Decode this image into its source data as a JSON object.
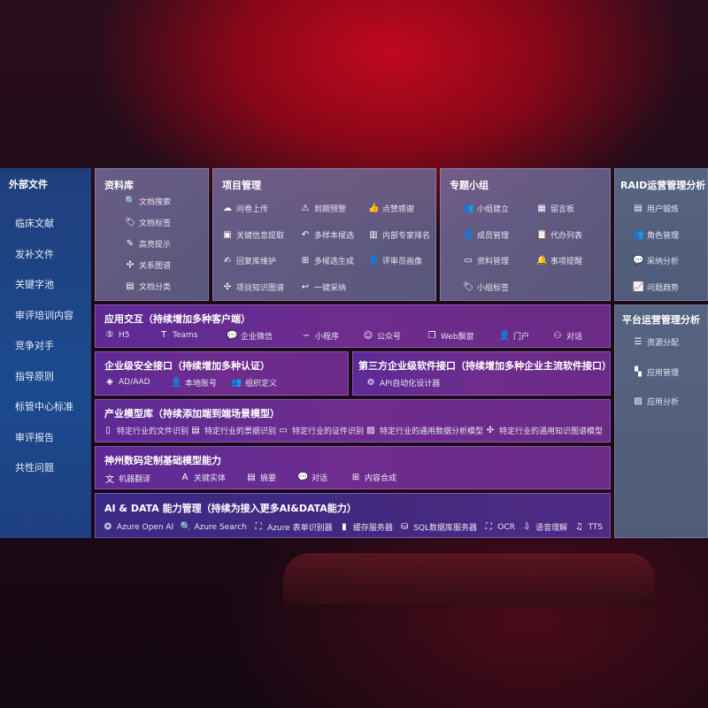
{
  "external": {
    "title": "外部文件",
    "items": [
      "临床文献",
      "发补文件",
      "关键字池",
      "审评培训内容",
      "竞争对手",
      "指导原则",
      "标管中心标准",
      "审评报告",
      "共性问题"
    ]
  },
  "library": {
    "title": "资料库",
    "items": [
      {
        "label": "文档搜索",
        "icon": "doc-search-icon",
        "g": "🔍"
      },
      {
        "label": "文档标签",
        "icon": "tag-icon",
        "g": "🏷"
      },
      {
        "label": "高亮提示",
        "icon": "pen-icon",
        "g": "✎"
      },
      {
        "label": "关系图谱",
        "icon": "graph-icon",
        "g": "✣"
      },
      {
        "label": "文档分类",
        "icon": "doc-category-icon",
        "g": "▤"
      }
    ]
  },
  "project": {
    "title": "项目管理",
    "items": [
      {
        "label": "问卷上传",
        "icon": "cloud-upload-icon",
        "g": "☁"
      },
      {
        "label": "到期预警",
        "icon": "alarm-icon",
        "g": "⚠"
      },
      {
        "label": "点赞感谢",
        "icon": "thumbs-up-icon",
        "g": "👍"
      },
      {
        "label": "关键信息提取",
        "icon": "window-icon",
        "g": "▣"
      },
      {
        "label": "多样本候选",
        "icon": "reply-all-icon",
        "g": "↶"
      },
      {
        "label": "内部专家排名",
        "icon": "ranking-icon",
        "g": "▥"
      },
      {
        "label": "回复库维护",
        "icon": "edit-icon",
        "g": "✍"
      },
      {
        "label": "多候选生成",
        "icon": "puzzle-icon",
        "g": "⊞"
      },
      {
        "label": "评审员画像",
        "icon": "user-icon",
        "g": "👤"
      },
      {
        "label": "项目知识图谱",
        "icon": "knowledge-graph-icon",
        "g": "✣"
      },
      {
        "label": "一键采纳",
        "icon": "reply-icon",
        "g": "↩"
      }
    ]
  },
  "group": {
    "title": "专题小组",
    "items": [
      {
        "label": "小组建立",
        "icon": "group-icon",
        "g": "👥"
      },
      {
        "label": "留言板",
        "icon": "bbs-icon",
        "g": "▦"
      },
      {
        "label": "成员管理",
        "icon": "member-icon",
        "g": "👤"
      },
      {
        "label": "代办列表",
        "icon": "clipboard-icon",
        "g": "📋"
      },
      {
        "label": "资料管理",
        "icon": "folder-icon",
        "g": "▭"
      },
      {
        "label": "事项提醒",
        "icon": "bell-icon",
        "g": "🔔"
      },
      {
        "label": "小组标签",
        "icon": "tag-icon",
        "g": "🏷"
      }
    ]
  },
  "raid": {
    "title": "RAID运营管理分析",
    "items": [
      {
        "label": "用户锻炼",
        "icon": "id-card-icon",
        "g": "▤"
      },
      {
        "label": "角色管理",
        "icon": "users-icon",
        "g": "👥"
      },
      {
        "label": "采纳分析",
        "icon": "qa-icon",
        "g": "💬"
      },
      {
        "label": "问题趋势",
        "icon": "trend-icon",
        "g": "📈"
      }
    ]
  },
  "platform": {
    "title": "平台运营管理分析",
    "items": [
      {
        "label": "资源分配",
        "icon": "checklist-icon",
        "g": "☰"
      },
      {
        "label": "应用管理",
        "icon": "apps-icon",
        "g": "▚"
      },
      {
        "label": "应用分析",
        "icon": "analysis-icon",
        "g": "▨"
      }
    ]
  },
  "interaction": {
    "title": "应用交互（持续增加多种客户端）",
    "items": [
      {
        "label": "H5",
        "icon": "html5-icon",
        "g": "⑤"
      },
      {
        "label": "Teams",
        "icon": "teams-icon",
        "g": "T"
      },
      {
        "label": "企业微信",
        "icon": "wecom-icon",
        "g": "💬"
      },
      {
        "label": "小程序",
        "icon": "miniprogram-icon",
        "g": "∽"
      },
      {
        "label": "公众号",
        "icon": "official-account-icon",
        "g": "☺"
      },
      {
        "label": "Web飘窗",
        "icon": "web-window-icon",
        "g": "❐"
      },
      {
        "label": "门户",
        "icon": "portal-icon",
        "g": "👤"
      },
      {
        "label": "对话",
        "icon": "chat-users-icon",
        "g": "⚇"
      }
    ]
  },
  "security": {
    "title": "企业级安全接口（持续增加多种认证）",
    "items": [
      {
        "label": "AD/AAD",
        "icon": "ad-icon",
        "g": "◈"
      },
      {
        "label": "本地账号",
        "icon": "local-account-icon",
        "g": "👤"
      },
      {
        "label": "组织定义",
        "icon": "org-icon",
        "g": "👥"
      }
    ]
  },
  "thirdparty": {
    "title": "第三方企业级软件接口（持续增加多种企业主流软件接口）",
    "items": [
      {
        "label": "API自动化设计器",
        "icon": "gear-icon",
        "g": "⚙"
      }
    ]
  },
  "models": {
    "title": "产业模型库（持续添加端到端场景模型）",
    "items": [
      {
        "label": "特定行业的文件识别",
        "icon": "file-icon",
        "g": "▯"
      },
      {
        "label": "特定行业的票据识别",
        "icon": "receipt-icon",
        "g": "▤"
      },
      {
        "label": "特定行业的证件识别",
        "icon": "id-card-icon",
        "g": "▭"
      },
      {
        "label": "特定行业的通用数据分析模型",
        "icon": "chart-icon",
        "g": "▨"
      },
      {
        "label": "特定行业的通用知识图谱模型",
        "icon": "knowledge-graph-icon",
        "g": "✣"
      }
    ]
  },
  "base": {
    "title": "神州数码定制基础模型能力",
    "items": [
      {
        "label": "机器翻译",
        "icon": "translate-icon",
        "g": "文"
      },
      {
        "label": "关键实体",
        "icon": "entity-icon",
        "g": "A"
      },
      {
        "label": "摘要",
        "icon": "summary-icon",
        "g": "▤"
      },
      {
        "label": "对话",
        "icon": "chat-icon",
        "g": "💬"
      },
      {
        "label": "内容合成",
        "icon": "compose-icon",
        "g": "⊞"
      }
    ]
  },
  "aidata": {
    "title": "AI & DATA 能力管理（持续为接入更多AI&DATA能力）",
    "items": [
      {
        "label": "Azure Open AI",
        "icon": "openai-icon",
        "g": "❂"
      },
      {
        "label": "Azure Search",
        "icon": "search-icon",
        "g": "🔍"
      },
      {
        "label": "Azure 表单识别器",
        "icon": "form-recognizer-icon",
        "g": "⛶"
      },
      {
        "label": "缓存服务器",
        "icon": "cache-server-icon",
        "g": "▮"
      },
      {
        "label": "SQL数据库服务器",
        "icon": "database-icon",
        "g": "⛁"
      },
      {
        "label": "OCR",
        "icon": "ocr-icon",
        "g": "⛶"
      },
      {
        "label": "语音理解",
        "icon": "speech-icon",
        "g": "⇩"
      },
      {
        "label": "TTS",
        "icon": "tts-icon",
        "g": "♫"
      }
    ]
  }
}
